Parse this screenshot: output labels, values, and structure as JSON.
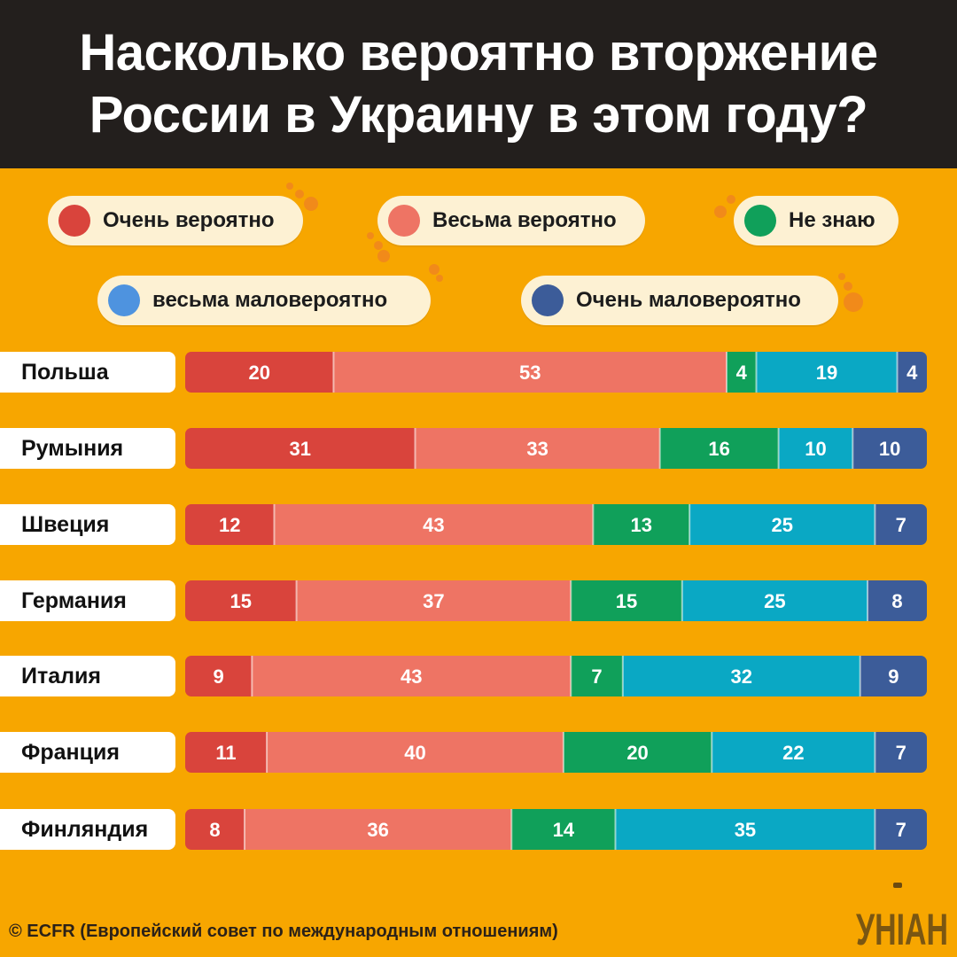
{
  "title_lines": [
    "Насколько вероятно вторжение",
    "России в Украину в этом году?"
  ],
  "legend": [
    {
      "label": "Очень вероятно",
      "color": "#d9443c"
    },
    {
      "label": "Весьма вероятно",
      "color": "#ee7464"
    },
    {
      "label": "Не знаю",
      "color": "#10a05a"
    },
    {
      "label": "весьма маловероятно",
      "color": "#4e93df"
    },
    {
      "label": "Очень маловероятно",
      "color": "#3c5c99"
    }
  ],
  "chart_data": {
    "type": "bar",
    "orientation": "horizontal",
    "stacked": true,
    "categories": [
      "Польша",
      "Румыния",
      "Швеция",
      "Германия",
      "Италия",
      "Франция",
      "Финляндия"
    ],
    "series": [
      {
        "name": "Очень вероятно",
        "color": "#d9443c",
        "values": [
          20,
          31,
          12,
          15,
          9,
          11,
          8
        ]
      },
      {
        "name": "Весьма вероятно",
        "color": "#ee7464",
        "values": [
          53,
          33,
          43,
          37,
          43,
          40,
          36
        ]
      },
      {
        "name": "Не знаю",
        "color": "#10a05a",
        "values": [
          4,
          16,
          13,
          15,
          7,
          20,
          14
        ]
      },
      {
        "name": "весьма маловероятно",
        "color": "#0aa8c4",
        "values": [
          19,
          10,
          25,
          25,
          32,
          22,
          35
        ]
      },
      {
        "name": "Очень маловероятно",
        "color": "#3c5c99",
        "values": [
          4,
          10,
          7,
          8,
          9,
          7,
          7
        ]
      }
    ]
  },
  "footer": "© ECFR (Европейский совет по международным отношениям)",
  "logo_text": "УНІАН"
}
